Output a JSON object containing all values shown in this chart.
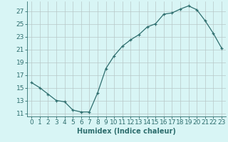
{
  "x": [
    0,
    1,
    2,
    3,
    4,
    5,
    6,
    7,
    8,
    9,
    10,
    11,
    12,
    13,
    14,
    15,
    16,
    17,
    18,
    19,
    20,
    21,
    22,
    23
  ],
  "y": [
    15.8,
    15.0,
    14.0,
    13.0,
    12.8,
    11.5,
    11.2,
    11.2,
    14.2,
    18.0,
    20.0,
    21.5,
    22.5,
    23.3,
    24.5,
    25.0,
    26.5,
    26.7,
    27.3,
    27.8,
    27.2,
    25.5,
    23.5,
    21.2
  ],
  "xlabel": "Humidex (Indice chaleur)",
  "xlim": [
    -0.5,
    23.5
  ],
  "ylim": [
    10.5,
    28.5
  ],
  "yticks": [
    11,
    13,
    15,
    17,
    19,
    21,
    23,
    25,
    27
  ],
  "xticks": [
    0,
    1,
    2,
    3,
    4,
    5,
    6,
    7,
    8,
    9,
    10,
    11,
    12,
    13,
    14,
    15,
    16,
    17,
    18,
    19,
    20,
    21,
    22,
    23
  ],
  "line_color": "#2e6e6e",
  "marker": "+",
  "bg_color": "#d8f5f5",
  "grid_color": "#b8c8c8",
  "label_fontsize": 7,
  "tick_fontsize": 6.5
}
